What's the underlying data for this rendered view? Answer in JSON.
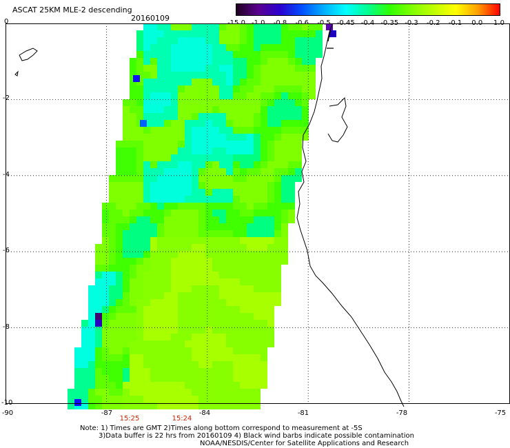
{
  "header": {
    "title": "ASCAT 25KM MLE-2 descending",
    "date": "20160109"
  },
  "colorbar": {
    "labels": [
      "-15.0",
      "-1.0",
      "-0.8",
      "-0.6",
      "-0.5",
      "-0.45",
      "-0.4",
      "-0.35",
      "-0.3",
      "-0.2",
      "-0.1",
      "0.0",
      "1.0"
    ],
    "colors": [
      "#200020",
      "#5a0090",
      "#2a00d0",
      "#0050ff",
      "#00b0ff",
      "#00ffff",
      "#00ff90",
      "#30ff00",
      "#80ff00",
      "#c0ff00",
      "#ffff00",
      "#ffa000",
      "#ff0000"
    ]
  },
  "axes": {
    "y_ticks": [
      "0",
      "-2",
      "-4",
      "-6",
      "-8",
      "-10"
    ],
    "x_ticks": [
      "-90",
      "-87",
      "-84",
      "-81",
      "-78",
      "-75"
    ],
    "lat_range": [
      -10,
      0
    ],
    "lon_range": [
      -90,
      -75
    ]
  },
  "pass_times": [
    "15:25",
    "15:24"
  ],
  "notes": {
    "line1": "Note: 1) Times are GMT 2)Times along bottom correspond to measurement at -5S",
    "line2": "3)Data buffer is 22 hrs from 20160109 4) Black wind barbs indicate possible contamination",
    "line3": "NOAA/NESDIS/Center for Satellite Applications and Research"
  }
}
